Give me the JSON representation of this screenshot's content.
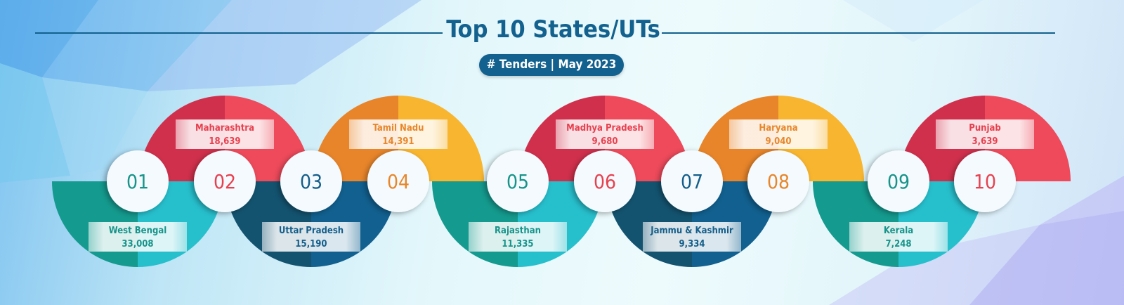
{
  "header": {
    "title": "Top 10 States/UTs",
    "subtitle": "# Tenders | May 2023"
  },
  "colors": {
    "title": "#13618e",
    "teal": [
      "#149a8e",
      "#26bfcc"
    ],
    "red": [
      "#d0304c",
      "#ee4a5b"
    ],
    "blue": [
      "#13536f",
      "#11608f"
    ],
    "orange": [
      "#e8852a",
      "#f8b52f"
    ]
  },
  "states": [
    {
      "rank": "01",
      "name": "West Bengal",
      "tenders": "33,008",
      "palette": "teal",
      "text_color": "#17948a",
      "side": "bottom"
    },
    {
      "rank": "02",
      "name": "Maharashtra",
      "tenders": "18,639",
      "palette": "red",
      "text_color": "#e8404f",
      "side": "top"
    },
    {
      "rank": "03",
      "name": "Uttar Pradesh",
      "tenders": "15,190",
      "palette": "blue",
      "text_color": "#145e8a",
      "side": "bottom"
    },
    {
      "rank": "04",
      "name": "Tamil Nadu",
      "tenders": "14,391",
      "palette": "orange",
      "text_color": "#e8862a",
      "side": "top"
    },
    {
      "rank": "05",
      "name": "Rajasthan",
      "tenders": "11,335",
      "palette": "teal",
      "text_color": "#17948a",
      "side": "bottom"
    },
    {
      "rank": "06",
      "name": "Madhya Pradesh",
      "tenders": "9,680",
      "palette": "red",
      "text_color": "#e8404f",
      "side": "top"
    },
    {
      "rank": "07",
      "name": "Jammu & Kashmir",
      "tenders": "9,334",
      "palette": "blue",
      "text_color": "#145e8a",
      "side": "bottom"
    },
    {
      "rank": "08",
      "name": "Haryana",
      "tenders": "9,040",
      "palette": "orange",
      "text_color": "#e8862a",
      "side": "top"
    },
    {
      "rank": "09",
      "name": "Kerala",
      "tenders": "7,248",
      "palette": "teal",
      "text_color": "#17948a",
      "side": "bottom"
    },
    {
      "rank": "10",
      "name": "Punjab",
      "tenders": "3,639",
      "palette": "red",
      "text_color": "#e8404f",
      "side": "top"
    }
  ]
}
